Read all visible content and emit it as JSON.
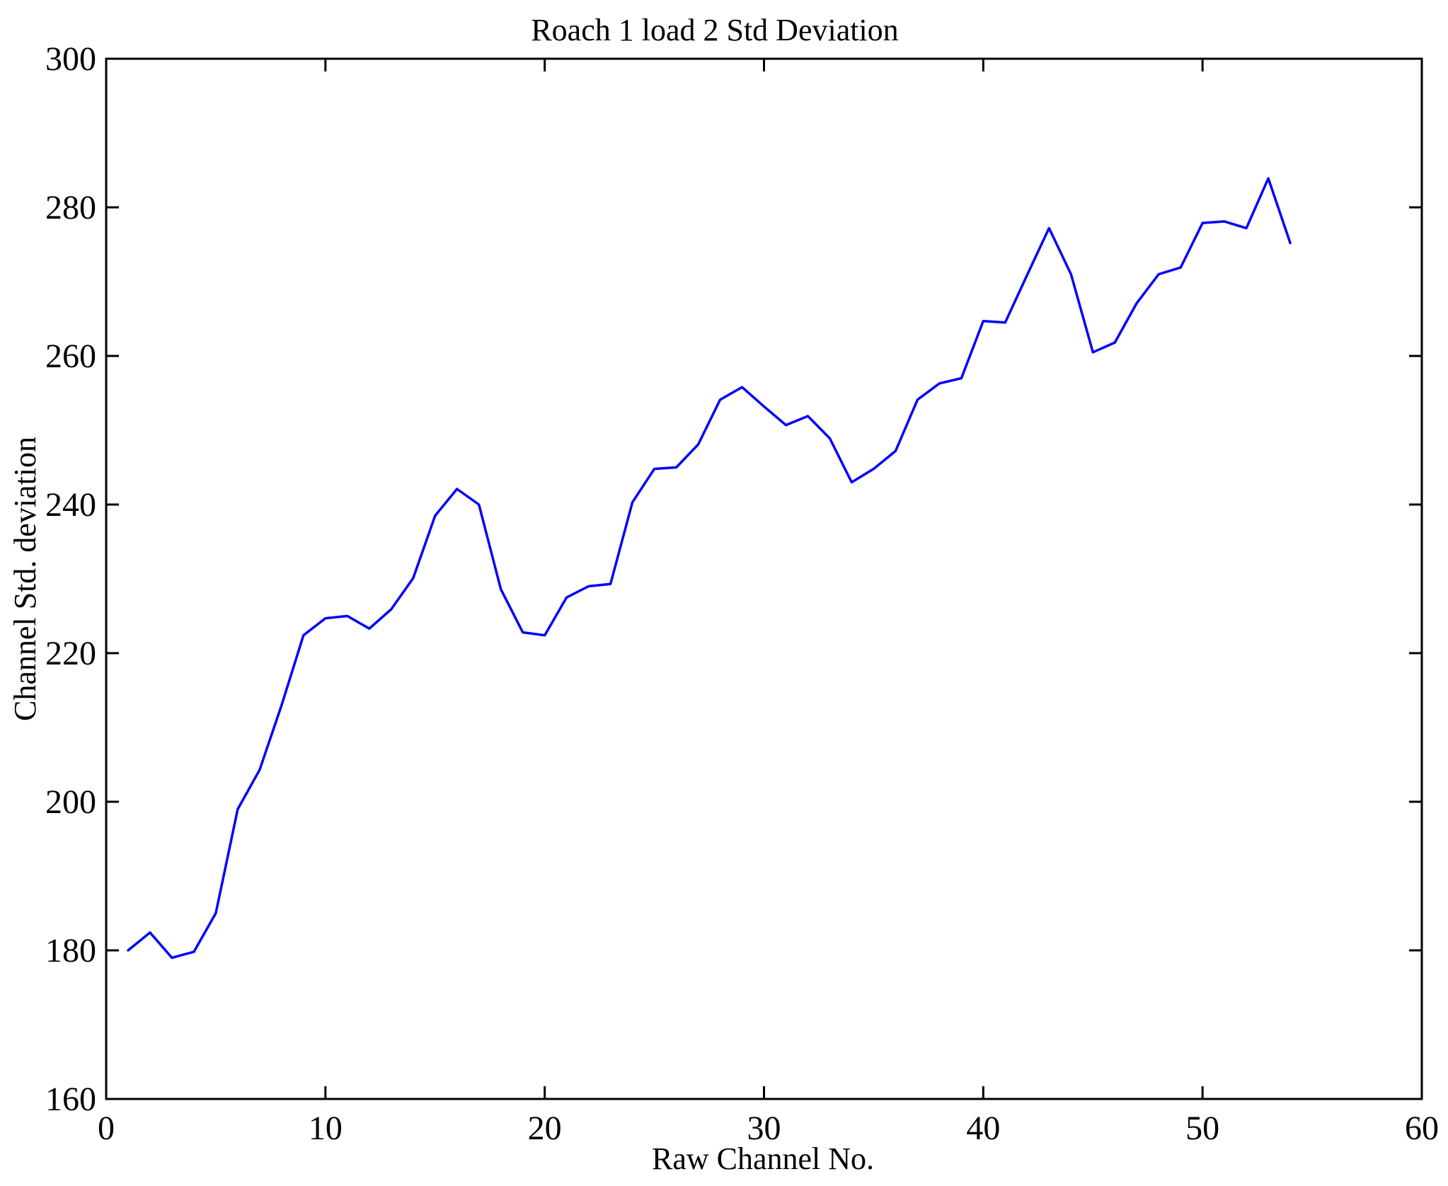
{
  "figure": {
    "title": "Roach 1 load 2 Std Deviation",
    "xlabel": "Raw Channel No.",
    "ylabel": "Channel Std. deviation"
  },
  "chart_data": {
    "type": "line",
    "title": "Roach 1 load 2 Std Deviation",
    "xlabel": "Raw Channel No.",
    "ylabel": "Channel Std. deviation",
    "xlim": [
      0,
      60
    ],
    "ylim": [
      160,
      300
    ],
    "xticks": [
      0,
      10,
      20,
      30,
      40,
      50,
      60
    ],
    "yticks": [
      160,
      180,
      200,
      220,
      240,
      260,
      280,
      300
    ],
    "grid": false,
    "legend_position": "none",
    "line_color": "#0000FF",
    "axis_color": "#000000",
    "background_color": "#FFFFFF",
    "x": [
      1,
      2,
      3,
      4,
      5,
      6,
      7,
      8,
      9,
      10,
      11,
      12,
      13,
      14,
      15,
      16,
      17,
      18,
      19,
      20,
      21,
      22,
      23,
      24,
      25,
      26,
      27,
      28,
      29,
      30,
      31,
      32,
      33,
      34,
      35,
      36,
      37,
      38,
      39,
      40,
      41,
      42,
      43,
      44,
      45,
      46,
      47,
      48,
      49,
      50,
      51,
      52,
      53,
      54
    ],
    "y": [
      180.0,
      182.4,
      179.0,
      179.8,
      185.0,
      199.0,
      204.3,
      213.0,
      222.4,
      224.7,
      225.0,
      223.3,
      225.9,
      230.1,
      238.5,
      242.1,
      240.0,
      228.6,
      222.8,
      222.4,
      227.5,
      229.0,
      229.3,
      240.3,
      244.8,
      245.0,
      248.1,
      254.1,
      255.8,
      253.2,
      250.7,
      251.9,
      248.9,
      243.0,
      244.8,
      247.2,
      254.1,
      256.3,
      257.0,
      264.7,
      264.5,
      270.9,
      277.2,
      271.0,
      260.5,
      261.8,
      267.1,
      271.0,
      271.9,
      277.9,
      278.1,
      277.2,
      283.9,
      275.2
    ]
  }
}
